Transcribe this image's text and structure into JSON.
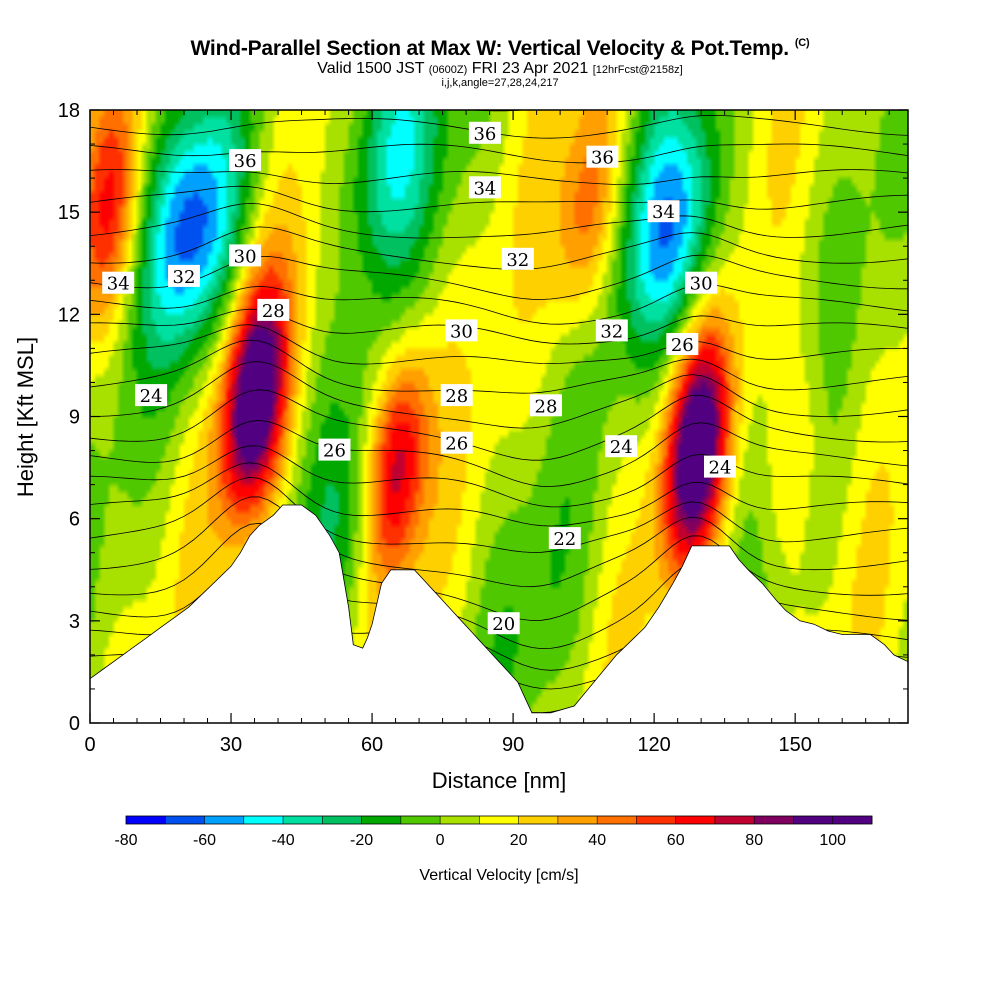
{
  "header": {
    "title": "Wind-Parallel Section at Max W: Vertical Velocity & Pot.Temp.",
    "copyright": "(C)",
    "valid_prefix": "Valid 1500 JST",
    "valid_zulu": "(0600Z)",
    "valid_date": "FRI 23 Apr 2021",
    "forecast": "[12hrFcst@2158z]",
    "indices": "i,j,k,angle=27,28,24,217"
  },
  "chart_data": {
    "type": "heatmap",
    "xlabel": "Distance [nm]",
    "ylabel": "Height [Kft MSL]",
    "xlim": [
      0,
      174
    ],
    "ylim": [
      0,
      18
    ],
    "x_ticks": [
      "0",
      "30",
      "60",
      "90",
      "120",
      "150"
    ],
    "y_ticks": [
      "0",
      "3",
      "6",
      "9",
      "12",
      "15",
      "18"
    ],
    "colorbar": {
      "label": "Vertical Velocity [cm/s]",
      "ticks": [
        "-80",
        "-60",
        "-40",
        "-20",
        "0",
        "20",
        "40",
        "60",
        "80",
        "100"
      ],
      "range": [
        -80,
        110
      ],
      "step": 10,
      "colors": [
        "#0000ff",
        "#0050f0",
        "#00a0ff",
        "#00ffff",
        "#00e0a0",
        "#00c060",
        "#00a800",
        "#50c800",
        "#a8e000",
        "#ffff00",
        "#ffd000",
        "#ffa000",
        "#ff7000",
        "#ff3000",
        "#ff0000",
        "#c00030",
        "#800060",
        "#500080",
        "#500080"
      ]
    },
    "velocity_features": [
      {
        "kind": "updraft",
        "x": 35,
        "z": 9.6,
        "peak": 105
      },
      {
        "kind": "updraft",
        "x": 129,
        "z": 8.0,
        "peak": 100
      },
      {
        "kind": "updraft",
        "x": 65,
        "z": 7.5,
        "peak": 75
      },
      {
        "kind": "updraft",
        "x": 106,
        "z": 15.0,
        "peak": 40
      },
      {
        "kind": "updraft",
        "x": 4,
        "z": 15.0,
        "peak": 45
      },
      {
        "kind": "updraft",
        "x": 150,
        "z": 8.0,
        "peak": 20
      },
      {
        "kind": "downdraft",
        "x": 22,
        "z": 14.5,
        "peak": -65
      },
      {
        "kind": "downdraft",
        "x": 124,
        "z": 14.5,
        "peak": -60
      },
      {
        "kind": "downdraft",
        "x": 64,
        "z": 17.0,
        "peak": -45
      },
      {
        "kind": "downdraft",
        "x": 96,
        "z": 3.0,
        "peak": -10
      },
      {
        "kind": "downdraft",
        "x": 56,
        "z": 6.0,
        "peak": -20
      }
    ],
    "contour_labels": [
      {
        "text": "36",
        "x": 33,
        "z": 16.5
      },
      {
        "text": "34",
        "x": 6,
        "z": 12.9
      },
      {
        "text": "32",
        "x": 20,
        "z": 13.1
      },
      {
        "text": "30",
        "x": 33,
        "z": 13.7
      },
      {
        "text": "28",
        "x": 39,
        "z": 12.1
      },
      {
        "text": "24",
        "x": 13,
        "z": 9.6
      },
      {
        "text": "26",
        "x": 52,
        "z": 8.0
      },
      {
        "text": "36",
        "x": 84,
        "z": 17.3
      },
      {
        "text": "34",
        "x": 84,
        "z": 15.7
      },
      {
        "text": "32",
        "x": 91,
        "z": 13.6
      },
      {
        "text": "30",
        "x": 79,
        "z": 11.5
      },
      {
        "text": "28",
        "x": 78,
        "z": 9.6
      },
      {
        "text": "28",
        "x": 97,
        "z": 9.3
      },
      {
        "text": "26",
        "x": 78,
        "z": 8.2
      },
      {
        "text": "22",
        "x": 101,
        "z": 5.4
      },
      {
        "text": "20",
        "x": 88,
        "z": 2.9
      },
      {
        "text": "36",
        "x": 109,
        "z": 16.6
      },
      {
        "text": "34",
        "x": 122,
        "z": 15.0
      },
      {
        "text": "32",
        "x": 111,
        "z": 11.5
      },
      {
        "text": "30",
        "x": 130,
        "z": 12.9
      },
      {
        "text": "26",
        "x": 126,
        "z": 11.1
      },
      {
        "text": "24",
        "x": 113,
        "z": 8.1
      },
      {
        "text": "24",
        "x": 134,
        "z": 7.5
      }
    ],
    "terrain": [
      [
        0,
        1.3
      ],
      [
        3,
        1.6
      ],
      [
        6,
        1.9
      ],
      [
        9,
        2.2
      ],
      [
        12,
        2.5
      ],
      [
        15,
        2.8
      ],
      [
        18,
        3.1
      ],
      [
        21,
        3.4
      ],
      [
        24,
        3.8
      ],
      [
        27,
        4.2
      ],
      [
        30,
        4.6
      ],
      [
        32,
        5.0
      ],
      [
        34,
        5.5
      ],
      [
        36,
        5.8
      ],
      [
        39,
        6.1
      ],
      [
        41,
        6.4
      ],
      [
        45,
        6.4
      ],
      [
        48,
        6.1
      ],
      [
        51,
        5.5
      ],
      [
        53,
        5.0
      ],
      [
        54,
        4.2
      ],
      [
        55,
        3.4
      ],
      [
        56,
        2.3
      ],
      [
        58,
        2.2
      ],
      [
        59,
        2.5
      ],
      [
        60,
        2.9
      ],
      [
        61,
        3.5
      ],
      [
        62,
        4.1
      ],
      [
        64,
        4.5
      ],
      [
        69,
        4.5
      ],
      [
        71,
        4.2
      ],
      [
        73,
        3.9
      ],
      [
        75,
        3.6
      ],
      [
        77,
        3.3
      ],
      [
        79,
        3.0
      ],
      [
        81,
        2.7
      ],
      [
        83,
        2.4
      ],
      [
        85,
        2.1
      ],
      [
        87,
        1.8
      ],
      [
        89,
        1.5
      ],
      [
        91,
        1.2
      ],
      [
        92,
        0.9
      ],
      [
        94,
        0.3
      ],
      [
        98,
        0.3
      ],
      [
        103,
        0.5
      ],
      [
        106,
        1.0
      ],
      [
        109,
        1.5
      ],
      [
        112,
        2.0
      ],
      [
        115,
        2.4
      ],
      [
        118,
        2.8
      ],
      [
        121,
        3.4
      ],
      [
        124,
        4.1
      ],
      [
        126,
        4.6
      ],
      [
        128,
        5.2
      ],
      [
        136,
        5.2
      ],
      [
        138,
        4.8
      ],
      [
        140,
        4.5
      ],
      [
        143,
        4.1
      ],
      [
        146,
        3.6
      ],
      [
        148,
        3.3
      ],
      [
        151,
        3.0
      ],
      [
        154,
        2.9
      ],
      [
        157,
        2.7
      ],
      [
        160,
        2.6
      ],
      [
        166,
        2.6
      ],
      [
        169,
        2.3
      ],
      [
        171,
        2.0
      ],
      [
        174,
        1.8
      ]
    ]
  }
}
